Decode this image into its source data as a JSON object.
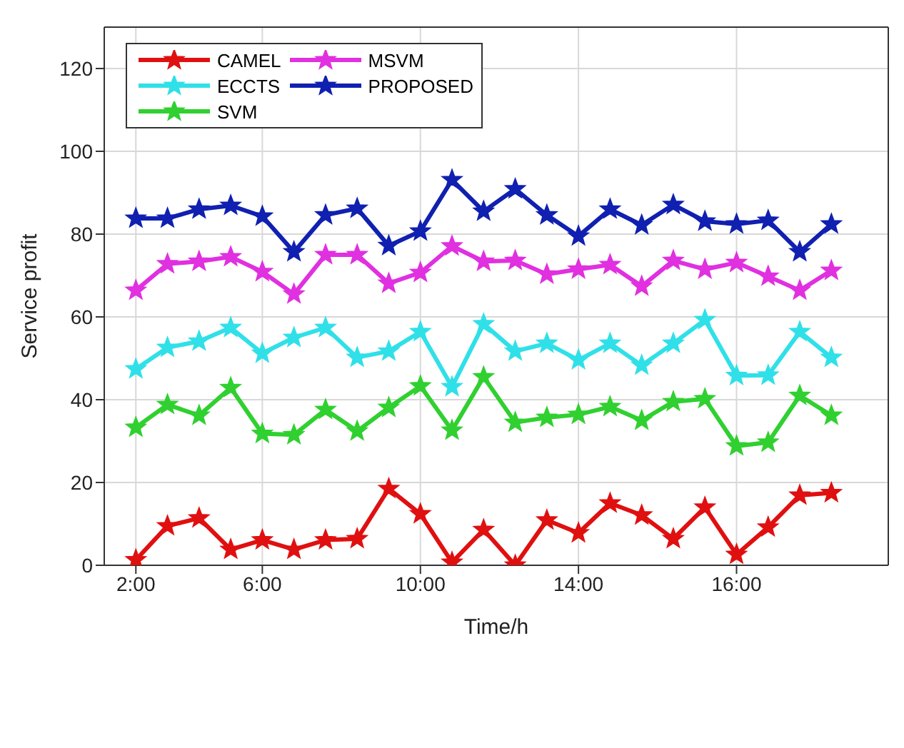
{
  "chart_data": {
    "type": "line",
    "xlabel": "Time/h",
    "ylabel": "Service profit",
    "categories": [
      "2:00",
      null,
      null,
      null,
      "6:00",
      null,
      null,
      null,
      null,
      "10:00",
      null,
      null,
      null,
      null,
      "14:00",
      null,
      null,
      null,
      null,
      "16:00",
      null,
      null,
      null
    ],
    "ylim": [
      0,
      130
    ],
    "yticks": [
      0,
      20,
      40,
      60,
      80,
      100,
      120
    ],
    "grid": true,
    "legend": "top left",
    "marker": "star",
    "line_style": "solid",
    "series": [
      {
        "name": "CAMEL",
        "color": "#e01010",
        "values": [
          1.3,
          9.5,
          11.4,
          3.8,
          6.1,
          3.8,
          6.1,
          6.4,
          18.5,
          12.4,
          0.7,
          8.6,
          0,
          10.9,
          7.8,
          15,
          12.1,
          6.4,
          14,
          2.6,
          9.2,
          16.9,
          17.5
        ]
      },
      {
        "name": "ECCTS",
        "color": "#30e0e8",
        "values": [
          47.4,
          52.6,
          54.1,
          57.4,
          51.2,
          55,
          57.4,
          50.2,
          51.7,
          56.4,
          43.1,
          58.3,
          51.7,
          53.6,
          49.6,
          53.6,
          48.3,
          53.6,
          59.3,
          45.8,
          45.9,
          56.4,
          50.2
        ]
      },
      {
        "name": "SVM",
        "color": "#30d030",
        "values": [
          33.3,
          38.8,
          36.2,
          42.9,
          31.8,
          31.5,
          37.6,
          32.4,
          38.1,
          43.3,
          32.6,
          45.5,
          34.5,
          35.7,
          36.4,
          38.3,
          35,
          39.5,
          40.2,
          28.8,
          29.7,
          41,
          36.2
        ]
      },
      {
        "name": "MSVM",
        "color": "#e030e0",
        "values": [
          66.4,
          72.8,
          73.4,
          74.5,
          70.9,
          65.5,
          75,
          75,
          68.1,
          70.7,
          77.1,
          73.4,
          73.6,
          70.3,
          71.5,
          72.6,
          67.4,
          73.6,
          71.5,
          73.1,
          69.8,
          66.4,
          71.2
        ]
      },
      {
        "name": "PROPOSED",
        "color": "#1020b0",
        "values": [
          83.8,
          83.8,
          86,
          86.9,
          84.3,
          75.7,
          84.6,
          86.2,
          77.2,
          80.7,
          93.1,
          85.5,
          90.9,
          84.6,
          79.5,
          86,
          82.2,
          87.1,
          83.1,
          82.4,
          83.3,
          75.7,
          82.4
        ]
      }
    ]
  }
}
